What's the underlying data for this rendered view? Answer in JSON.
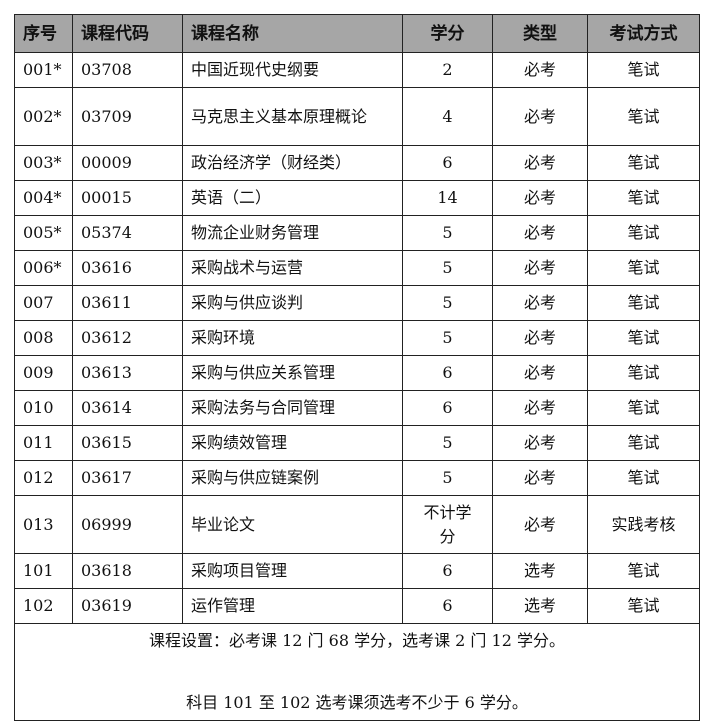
{
  "headers": [
    "序号",
    "课程代码",
    "课程名称",
    "学分",
    "类型",
    "考试方式"
  ],
  "rows": [
    [
      "001*",
      "03708",
      "中国近现代史纲要",
      "2",
      "必考",
      "笔试"
    ],
    [
      "002*",
      "03709",
      "马克思主义基本原理概论",
      "4",
      "必考",
      "笔试"
    ],
    [
      "003*",
      "00009",
      "政治经济学（财经类）",
      "6",
      "必考",
      "笔试"
    ],
    [
      "004*",
      "00015",
      "英语（二）",
      "14",
      "必考",
      "笔试"
    ],
    [
      "005*",
      "05374",
      "物流企业财务管理",
      "5",
      "必考",
      "笔试"
    ],
    [
      "006*",
      "03616",
      "采购战术与运营",
      "5",
      "必考",
      "笔试"
    ],
    [
      "007",
      "03611",
      "采购与供应谈判",
      "5",
      "必考",
      "笔试"
    ],
    [
      "008",
      "03612",
      "采购环境",
      "5",
      "必考",
      "笔试"
    ],
    [
      "009",
      "03613",
      "采购与供应关系管理",
      "6",
      "必考",
      "笔试"
    ],
    [
      "010",
      "03614",
      "采购法务与合同管理",
      "6",
      "必考",
      "笔试"
    ],
    [
      "011",
      "03615",
      "采购绩效管理",
      "5",
      "必考",
      "笔试"
    ],
    [
      "012",
      "03617",
      "采购与供应链案例",
      "5",
      "必考",
      "笔试"
    ],
    [
      "013",
      "06999",
      "毕业论文",
      "不计学分",
      "必考",
      "实践考核"
    ],
    [
      "101",
      "03618",
      "采购项目管理",
      "6",
      "选考",
      "笔试"
    ],
    [
      "102",
      "03619",
      "运作管理",
      "6",
      "选考",
      "笔试"
    ]
  ],
  "footer": {
    "line1": "课程设置：必考课 12 门 68 学分，选考课 2 门 12 学分。",
    "line2": "科目 101 至 102 选考课须选考不少于 6 学分。"
  },
  "colors": {
    "header_bg": "#a6a6a6",
    "border": "#222222"
  }
}
